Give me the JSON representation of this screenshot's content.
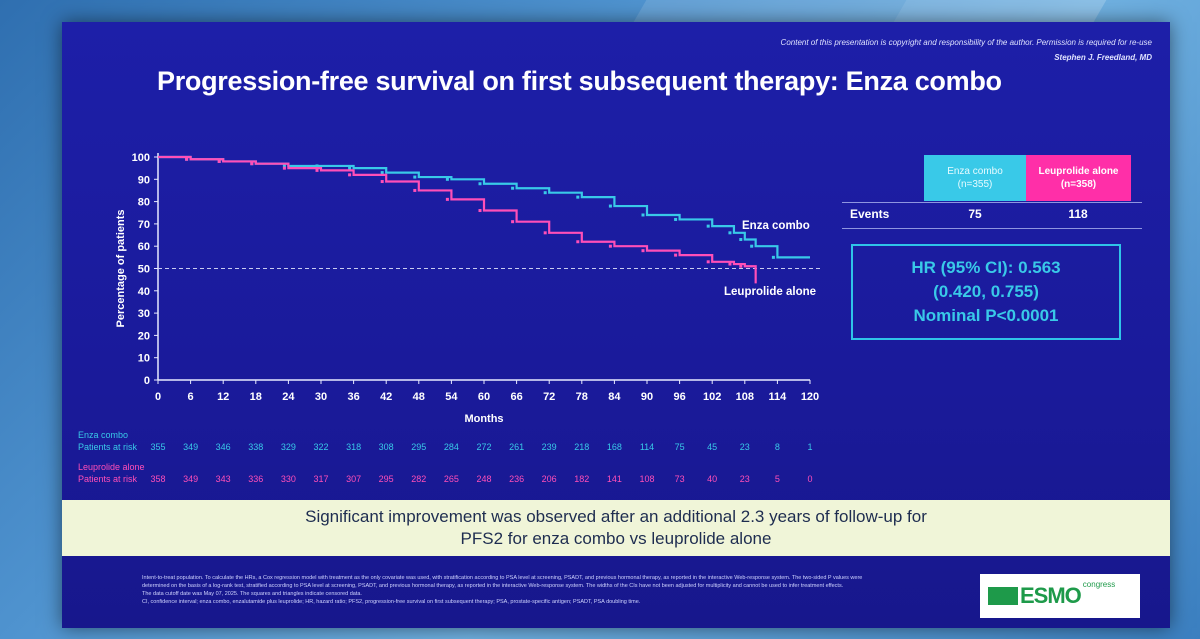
{
  "slide": {
    "copyright": "Content of this presentation is copyright and responsibility of the author. Permission is required for re-use",
    "author": "Stephen J. Freedland, MD",
    "title": "Progression-free survival on first subsequent therapy: Enza combo"
  },
  "chart_data": {
    "type": "line",
    "title": "",
    "xlabel": "Months",
    "ylabel": "Percentage of patients",
    "xlim": [
      0,
      120
    ],
    "ylim": [
      0,
      100
    ],
    "x_ticks": [
      0,
      6,
      12,
      18,
      24,
      30,
      36,
      42,
      48,
      54,
      60,
      66,
      72,
      78,
      84,
      90,
      96,
      102,
      108,
      114,
      120
    ],
    "y_ticks": [
      0,
      10,
      20,
      30,
      40,
      50,
      60,
      70,
      80,
      90,
      100
    ],
    "reference_line_y": 50,
    "series": [
      {
        "name": "Enza combo",
        "color": "#39c9e8",
        "x": [
          0,
          6,
          12,
          18,
          24,
          30,
          36,
          42,
          48,
          54,
          60,
          66,
          72,
          78,
          84,
          90,
          96,
          102,
          106,
          108,
          110,
          114,
          120
        ],
        "y": [
          100,
          99,
          98,
          97,
          96,
          96,
          95,
          93,
          91,
          90,
          88,
          86,
          84,
          82,
          78,
          74,
          72,
          69,
          66,
          63,
          60,
          55,
          55
        ]
      },
      {
        "name": "Leuprolide alone",
        "color": "#ff4fb8",
        "x": [
          0,
          6,
          12,
          18,
          24,
          30,
          36,
          42,
          48,
          54,
          60,
          66,
          72,
          78,
          84,
          90,
          96,
          102,
          106,
          108,
          110
        ],
        "y": [
          100,
          99,
          98,
          97,
          95,
          94,
          92,
          89,
          85,
          81,
          76,
          71,
          66,
          62,
          60,
          58,
          56,
          53,
          52,
          51,
          46
        ]
      }
    ],
    "annotations": [
      "Enza combo",
      "Leuprolide alone"
    ]
  },
  "events_table": {
    "enza_header": "Enza combo",
    "enza_n": "(n=355)",
    "leu_header": "Leuprolide alone",
    "leu_n": "(n=358)",
    "row_label": "Events",
    "enza_events": "75",
    "leu_events": "118"
  },
  "hr_box": {
    "line1": "HR (95% CI): 0.563",
    "line2": "(0.420, 0.755)",
    "line3": "Nominal P<0.0001"
  },
  "risk_table": {
    "enza_label": "Enza combo",
    "leu_label": "Leuprolide alone",
    "row_label": "Patients at risk",
    "enza_values": [
      "355",
      "349",
      "346",
      "338",
      "329",
      "322",
      "318",
      "308",
      "295",
      "284",
      "272",
      "261",
      "239",
      "218",
      "168",
      "114",
      "75",
      "45",
      "23",
      "8",
      "1"
    ],
    "leu_values": [
      "358",
      "349",
      "343",
      "336",
      "330",
      "317",
      "307",
      "295",
      "282",
      "265",
      "248",
      "236",
      "206",
      "182",
      "141",
      "108",
      "73",
      "40",
      "23",
      "5",
      "0"
    ]
  },
  "banner": {
    "line1": "Significant improvement was observed after an additional 2.3 years of follow-up for",
    "line2": "PFS2 for enza combo vs leuprolide alone"
  },
  "footnote": {
    "line1": "Intent-to-treat population. To calculate the HRs, a Cox regression model with treatment as the only covariate was used, with stratification according to PSA level at screening, PSADT, and previous hormonal therapy, as reported in the interactive Web-response system. The two-sided P values were",
    "line2": "determined on the basis of a log-rank test, stratified according to PSA level at screening, PSADT, and previous hormonal therapy, as reported in the interactive Web-response system. The widths of the CIs have not been adjusted for multiplicity and cannot be used to infer treatment effects.",
    "line3": "The data cutoff date was May 07, 2025. The squares and triangles indicate censored data.",
    "line4": "CI, confidence interval; enza combo, enzalutamide plus leuprolide; HR, hazard ratio; PFS2, progression-free survival on first subsequent therapy; PSA, prostate-specific antigen; PSADT, PSA doubling time."
  },
  "logo": {
    "text": "ESMO",
    "sub": "congress"
  }
}
